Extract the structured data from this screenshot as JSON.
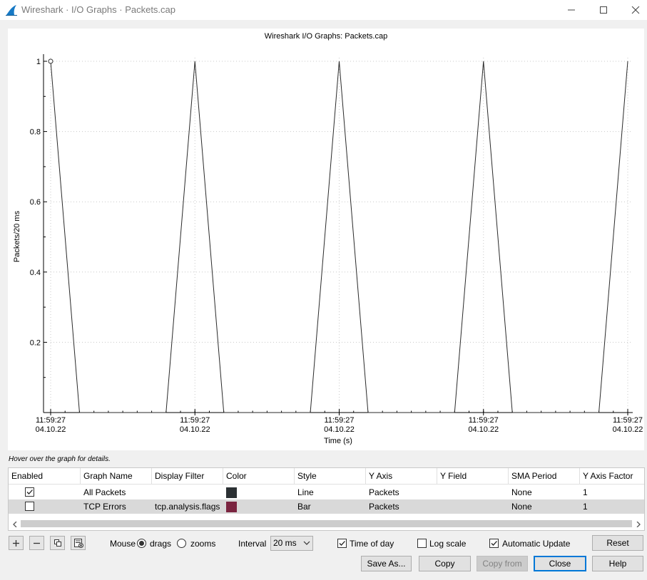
{
  "window": {
    "title": "Wireshark · I/O Graphs · Packets.cap"
  },
  "chart_data": {
    "type": "line",
    "title": "Wireshark I/O Graphs: Packets.cap",
    "xlabel": "Time (s)",
    "ylabel": "Packets/20 ms",
    "ylim": [
      0,
      1
    ],
    "yticks": [
      {
        "value": 0.2,
        "label": "0.2"
      },
      {
        "value": 0.4,
        "label": "0.4"
      },
      {
        "value": 0.6,
        "label": "0.6"
      },
      {
        "value": 0.8,
        "label": "0.8"
      },
      {
        "value": 1,
        "label": "1"
      }
    ],
    "xticks": [
      {
        "time": "11:59:27",
        "date": "04.10.22"
      },
      {
        "time": "11:59:27",
        "date": "04.10.22"
      },
      {
        "time": "11:59:27",
        "date": "04.10.22"
      },
      {
        "time": "11:59:27",
        "date": "04.10.22"
      },
      {
        "time": "11:59:27",
        "date": "04.10.22"
      }
    ],
    "grid": true,
    "series": [
      {
        "name": "All Packets",
        "color": "#2a2a2a",
        "x": [
          0,
          0.2,
          0.8,
          1,
          1.2,
          1.8,
          2,
          2.2,
          2.8,
          3,
          3.2,
          3.8,
          4
        ],
        "y": [
          1,
          0,
          0,
          1,
          0,
          0,
          1,
          0,
          0,
          1,
          0,
          0,
          1
        ]
      }
    ]
  },
  "hover_hint": "Hover over the graph for details.",
  "table": {
    "columns": [
      "Enabled",
      "Graph Name",
      "Display Filter",
      "Color",
      "Style",
      "Y Axis",
      "Y Field",
      "SMA Period",
      "Y Axis Factor"
    ],
    "rows": [
      {
        "enabled": true,
        "name": "All Packets",
        "filter": "",
        "color": "#2b3033",
        "style": "Line",
        "y_axis": "Packets",
        "y_field": "",
        "sma": "None",
        "factor": "1"
      },
      {
        "enabled": false,
        "name": "TCP Errors",
        "filter": "tcp.analysis.flags",
        "color": "#7a2440",
        "style": "Bar",
        "y_axis": "Packets",
        "y_field": "",
        "sma": "None",
        "factor": "1"
      }
    ]
  },
  "controls": {
    "mouse_label": "Mouse",
    "drags_label": "drags",
    "zooms_label": "zooms",
    "mouse_mode": "drags",
    "interval_label": "Interval",
    "interval_value": "20 ms",
    "time_of_day_label": "Time of day",
    "time_of_day": true,
    "log_scale_label": "Log scale",
    "log_scale": false,
    "auto_update_label": "Automatic Update",
    "auto_update": true,
    "reset_label": "Reset"
  },
  "buttons": {
    "save_as": "Save As...",
    "copy": "Copy",
    "copy_from": "Copy from",
    "close": "Close",
    "help": "Help"
  }
}
